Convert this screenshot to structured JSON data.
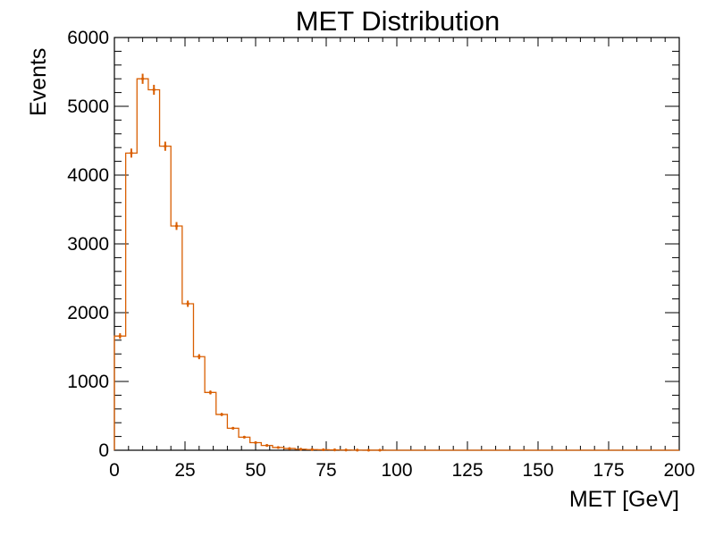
{
  "chart_data": {
    "type": "histogram",
    "title": "MET Distribution",
    "xlabel": "MET [GeV]",
    "ylabel": "Events",
    "xlim": [
      0,
      200
    ],
    "ylim": [
      0,
      6000
    ],
    "grid": false,
    "legend": "none",
    "x_ticks": [
      0,
      25,
      50,
      75,
      100,
      125,
      150,
      175,
      200
    ],
    "y_ticks": [
      0,
      1000,
      2000,
      3000,
      4000,
      5000,
      6000
    ],
    "bin_width": 4,
    "bin_edges_start": 0,
    "values": [
      1660,
      4320,
      5400,
      5240,
      4420,
      3260,
      2130,
      1360,
      840,
      520,
      320,
      190,
      110,
      70,
      40,
      25,
      15,
      10,
      7,
      5,
      3,
      2,
      1,
      1,
      0,
      0,
      0,
      0,
      0,
      0,
      0,
      0,
      0,
      0,
      0,
      0,
      0,
      0,
      0,
      0,
      0,
      0,
      0,
      0,
      0,
      0,
      0,
      0,
      0,
      0
    ],
    "line_color": "#d95f02"
  }
}
